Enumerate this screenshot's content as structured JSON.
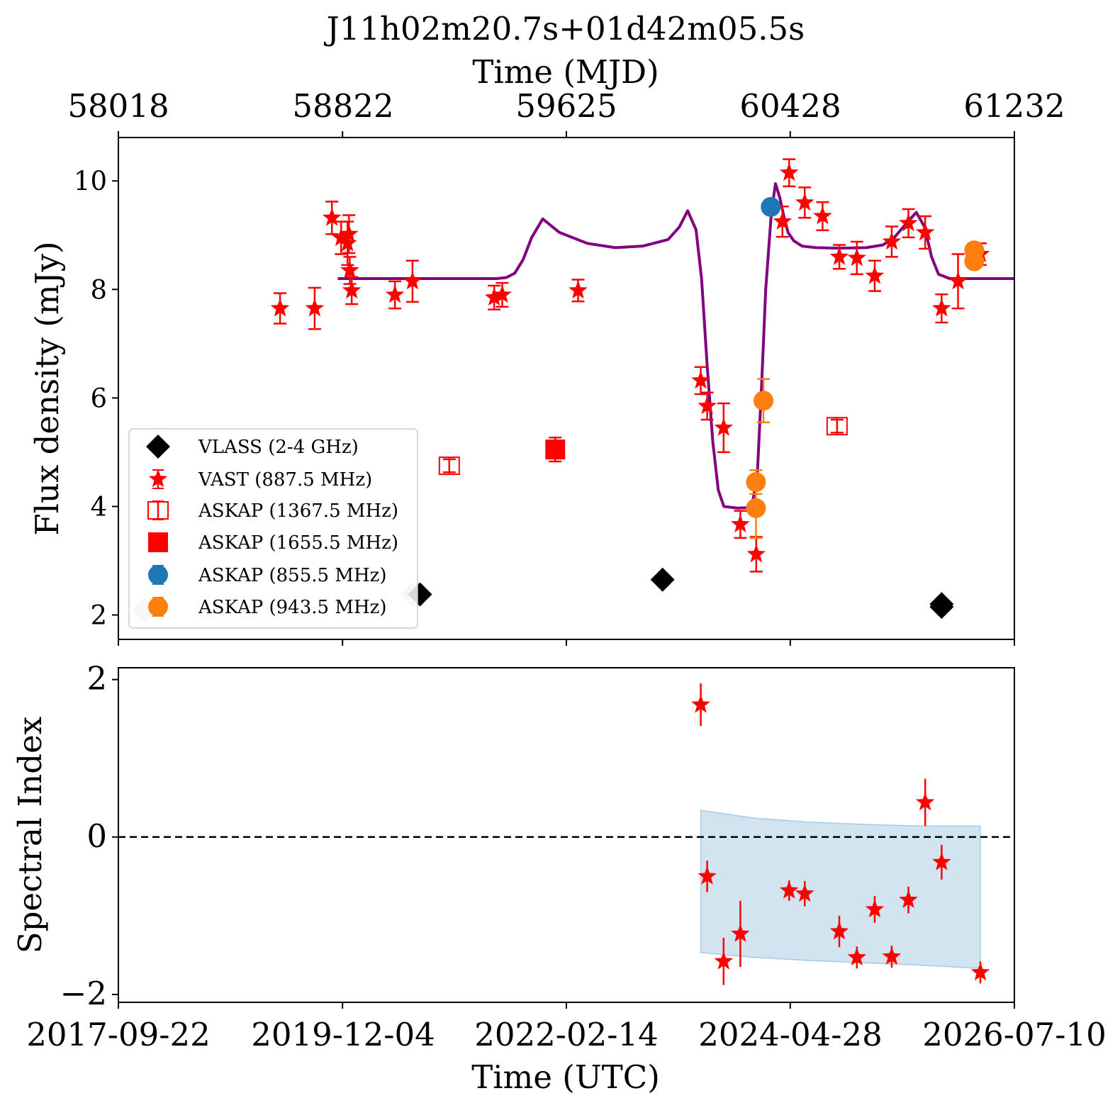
{
  "figure": {
    "title": "J11h02m20.7s+01d42m05.5s",
    "top_xlabel": "Time (MJD)",
    "bottom_xlabel": "Time (UTC)",
    "top_ylabel": "Flux density (mJy)",
    "bottom_ylabel": "Spectral Index",
    "mjd_ticks": [
      "58018",
      "58822",
      "59625",
      "60428",
      "61232"
    ],
    "utc_ticks": [
      "2017-09-22",
      "2019-12-04",
      "2022-02-14",
      "2024-04-28",
      "2026-07-10"
    ]
  },
  "chart_data": [
    {
      "type": "scatter",
      "panel": "flux",
      "xlabel": "Time (UTC)",
      "x2label": "Time (MJD)",
      "ylabel": "Flux density (mJy)",
      "xlim": [
        58018,
        61232
      ],
      "ylim": [
        1.55,
        10.8
      ],
      "yticks": [
        2,
        4,
        6,
        8,
        10
      ],
      "xticks": [
        58018,
        58822,
        59625,
        60428,
        61232
      ],
      "legend_position": "lower-left",
      "colors": {
        "VLASS": "#000000",
        "VLASS_faded": "#c8c8c8",
        "VAST": "#ff0000",
        "ASKAP_1367": "#ff0000",
        "ASKAP_1655": "#ff0000",
        "ASKAP_855": "#1f77b4",
        "ASKAP_943": "#ff7f0e",
        "model": "#800080"
      },
      "series": [
        {
          "name": "VLASS (2-4 GHz)",
          "key": "VLASS",
          "marker": "diamond",
          "points": [
            {
              "x": 58110,
              "y": 2.08,
              "yerr": 0.08,
              "faded": true
            },
            {
              "x": 59073,
              "y": 2.38,
              "yerr": 0.08,
              "faded": true
            },
            {
              "x": 59100,
              "y": 2.38,
              "yerr": 0.08
            },
            {
              "x": 59970,
              "y": 2.65,
              "yerr": 0.08
            },
            {
              "x": 60971,
              "y": 2.2,
              "yerr": 0.18
            },
            {
              "x": 60971,
              "y": 2.15,
              "yerr": 0.1
            }
          ]
        },
        {
          "name": "VAST (887.5 MHz)",
          "key": "VAST",
          "marker": "star",
          "points": [
            {
              "x": 58598,
              "y": 7.65,
              "yerr": 0.28
            },
            {
              "x": 58722,
              "y": 7.65,
              "yerr": 0.38
            },
            {
              "x": 58784,
              "y": 9.32,
              "yerr": 0.3
            },
            {
              "x": 58817,
              "y": 8.95,
              "yerr": 0.3
            },
            {
              "x": 58845,
              "y": 9.02,
              "yerr": 0.35
            },
            {
              "x": 58840,
              "y": 8.85,
              "yerr": 0.4
            },
            {
              "x": 58848,
              "y": 8.35,
              "yerr": 0.25
            },
            {
              "x": 58855,
              "y": 7.98,
              "yerr": 0.25
            },
            {
              "x": 59010,
              "y": 7.9,
              "yerr": 0.25
            },
            {
              "x": 59073,
              "y": 8.15,
              "yerr": 0.38
            },
            {
              "x": 59366,
              "y": 7.85,
              "yerr": 0.22
            },
            {
              "x": 59395,
              "y": 7.9,
              "yerr": 0.22
            },
            {
              "x": 59667,
              "y": 7.98,
              "yerr": 0.2
            },
            {
              "x": 60107,
              "y": 6.32,
              "yerr": 0.25
            },
            {
              "x": 60130,
              "y": 5.85,
              "yerr": 0.25
            },
            {
              "x": 60189,
              "y": 5.45,
              "yerr": 0.45
            },
            {
              "x": 60249,
              "y": 3.67,
              "yerr": 0.25
            },
            {
              "x": 60306,
              "y": 3.12,
              "yerr": 0.32
            },
            {
              "x": 60400,
              "y": 9.25,
              "yerr": 0.28
            },
            {
              "x": 60424,
              "y": 10.15,
              "yerr": 0.25
            },
            {
              "x": 60480,
              "y": 9.6,
              "yerr": 0.28
            },
            {
              "x": 60544,
              "y": 9.35,
              "yerr": 0.26
            },
            {
              "x": 60604,
              "y": 8.6,
              "yerr": 0.22
            },
            {
              "x": 60667,
              "y": 8.58,
              "yerr": 0.3
            },
            {
              "x": 60731,
              "y": 8.25,
              "yerr": 0.28
            },
            {
              "x": 60792,
              "y": 8.88,
              "yerr": 0.28
            },
            {
              "x": 60852,
              "y": 9.22,
              "yerr": 0.26
            },
            {
              "x": 60912,
              "y": 9.05,
              "yerr": 0.3
            },
            {
              "x": 60971,
              "y": 7.65,
              "yerr": 0.26
            },
            {
              "x": 61030,
              "y": 8.15,
              "yerr": 0.5
            },
            {
              "x": 61110,
              "y": 8.65,
              "yerr": 0.2
            }
          ]
        },
        {
          "name": "ASKAP (1367.5 MHz)",
          "key": "ASKAP_1367",
          "marker": "open-square",
          "points": [
            {
              "x": 59205,
              "y": 4.75,
              "yerr": 0.12
            },
            {
              "x": 60596,
              "y": 5.48,
              "yerr": 0.12
            }
          ]
        },
        {
          "name": "ASKAP (1655.5 MHz)",
          "key": "ASKAP_1655",
          "marker": "square",
          "points": [
            {
              "x": 59585,
              "y": 5.05,
              "yerr": 0.22
            }
          ]
        },
        {
          "name": "ASKAP (855.5 MHz)",
          "key": "ASKAP_855",
          "marker": "circle",
          "points": [
            {
              "x": 60358,
              "y": 9.52,
              "yerr": 0.05
            }
          ]
        },
        {
          "name": "ASKAP (943.5 MHz)",
          "key": "ASKAP_943",
          "marker": "circle",
          "points": [
            {
              "x": 60332,
              "y": 5.95,
              "yerr": 0.4
            },
            {
              "x": 60305,
              "y": 4.45,
              "yerr": 0.22
            },
            {
              "x": 60305,
              "y": 3.97,
              "yerr": 0.55
            },
            {
              "x": 61088,
              "y": 8.72,
              "yerr": 0.12
            },
            {
              "x": 61088,
              "y": 8.52,
              "yerr": 0.12
            }
          ]
        }
      ],
      "model": {
        "type": "line",
        "x": [
          58805,
          59375,
          59410,
          59440,
          59470,
          59500,
          59540,
          59600,
          59700,
          59800,
          59900,
          59990,
          60030,
          60060,
          60090,
          60110,
          60130,
          60150,
          60170,
          60190,
          60240,
          60290,
          60310,
          60325,
          60340,
          60360,
          60375,
          60390,
          60405,
          60420,
          60440,
          60470,
          60520,
          60600,
          60700,
          60760,
          60800,
          60850,
          60880,
          60910,
          60935,
          60960,
          61000,
          61232
        ],
        "y": [
          8.2,
          8.2,
          8.22,
          8.3,
          8.55,
          8.95,
          9.3,
          9.05,
          8.85,
          8.77,
          8.8,
          8.92,
          9.15,
          9.45,
          9.1,
          8.2,
          6.6,
          5.2,
          4.3,
          4.0,
          3.97,
          3.98,
          4.6,
          6.2,
          8.0,
          9.4,
          9.95,
          9.7,
          9.35,
          9.05,
          8.9,
          8.8,
          8.77,
          8.76,
          8.77,
          8.82,
          8.95,
          9.25,
          9.42,
          9.15,
          8.6,
          8.28,
          8.2,
          8.2
        ]
      }
    },
    {
      "type": "scatter",
      "panel": "spectral-index",
      "xlabel": "Time (UTC)",
      "ylabel": "Spectral Index",
      "xlim": [
        58018,
        61232
      ],
      "ylim": [
        -2.1,
        2.15
      ],
      "yticks": [
        -2,
        0,
        2
      ],
      "xticks": [
        58018,
        58822,
        59625,
        60428,
        61232
      ],
      "reference_line": {
        "y": 0,
        "style": "dashed",
        "color": "#000000"
      },
      "band": {
        "color": "#1f77b4",
        "opacity": 0.2,
        "x": [
          60107,
          60300,
          60500,
          60700,
          60900,
          61110
        ],
        "upper": [
          0.34,
          0.24,
          0.19,
          0.16,
          0.14,
          0.14
        ],
        "lower": [
          -1.47,
          -1.53,
          -1.57,
          -1.6,
          -1.63,
          -1.67
        ]
      },
      "series": [
        {
          "name": "",
          "key": "VAST",
          "marker": "star",
          "points": [
            {
              "x": 60107,
              "y": 1.68,
              "yerr": 0.27
            },
            {
              "x": 60130,
              "y": -0.5,
              "yerr": 0.2
            },
            {
              "x": 60189,
              "y": -1.58,
              "yerr": 0.3
            },
            {
              "x": 60249,
              "y": -1.23,
              "yerr": 0.42
            },
            {
              "x": 60424,
              "y": -0.68,
              "yerr": 0.13
            },
            {
              "x": 60480,
              "y": -0.72,
              "yerr": 0.16
            },
            {
              "x": 60604,
              "y": -1.2,
              "yerr": 0.2
            },
            {
              "x": 60667,
              "y": -1.53,
              "yerr": 0.14
            },
            {
              "x": 60731,
              "y": -0.92,
              "yerr": 0.17
            },
            {
              "x": 60792,
              "y": -1.52,
              "yerr": 0.14
            },
            {
              "x": 60852,
              "y": -0.8,
              "yerr": 0.17
            },
            {
              "x": 60912,
              "y": 0.44,
              "yerr": 0.3
            },
            {
              "x": 60971,
              "y": -0.32,
              "yerr": 0.22
            },
            {
              "x": 61110,
              "y": -1.72,
              "yerr": 0.14
            }
          ]
        }
      ]
    }
  ]
}
